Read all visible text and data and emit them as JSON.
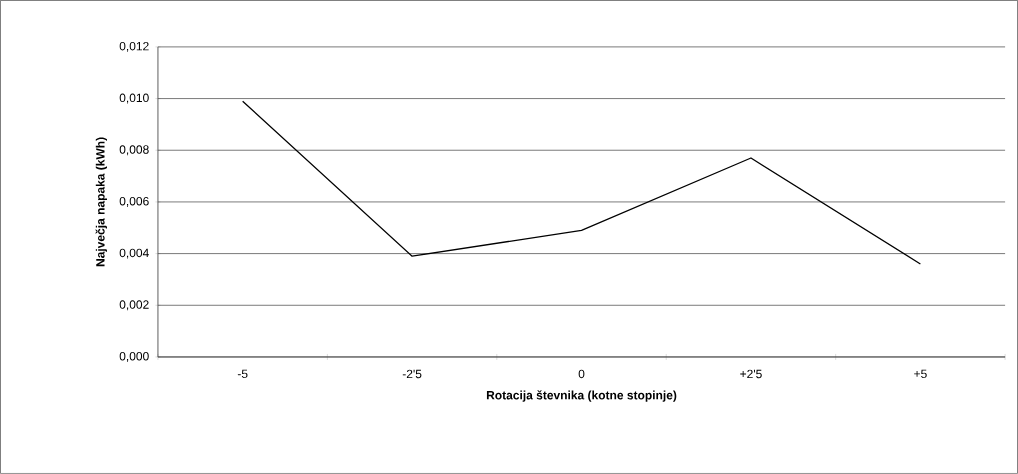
{
  "chart_data": {
    "type": "line",
    "xlabel": "Rotacija števnika (kotne stopinje)",
    "ylabel": "Največja napaka (kWh)",
    "categories": [
      "-5",
      "-2'5",
      "0",
      "+2'5",
      "+5"
    ],
    "series": [
      {
        "color": "#000000",
        "values": [
          0.0099,
          0.0039,
          0.0049,
          0.0077,
          0.0036
        ]
      }
    ],
    "ylim": [
      0,
      0.012
    ],
    "yticks": [
      {
        "value": 0,
        "label": "0,000"
      },
      {
        "value": 0.002,
        "label": "0,002"
      },
      {
        "value": 0.004,
        "label": "0,004"
      },
      {
        "value": 0.006,
        "label": "0,006"
      },
      {
        "value": 0.008,
        "label": "0,008"
      },
      {
        "value": 0.01,
        "label": "0,010"
      },
      {
        "value": 0.012,
        "label": "0,012"
      }
    ],
    "grid": "y",
    "marker": "none",
    "line_style": "solid"
  }
}
